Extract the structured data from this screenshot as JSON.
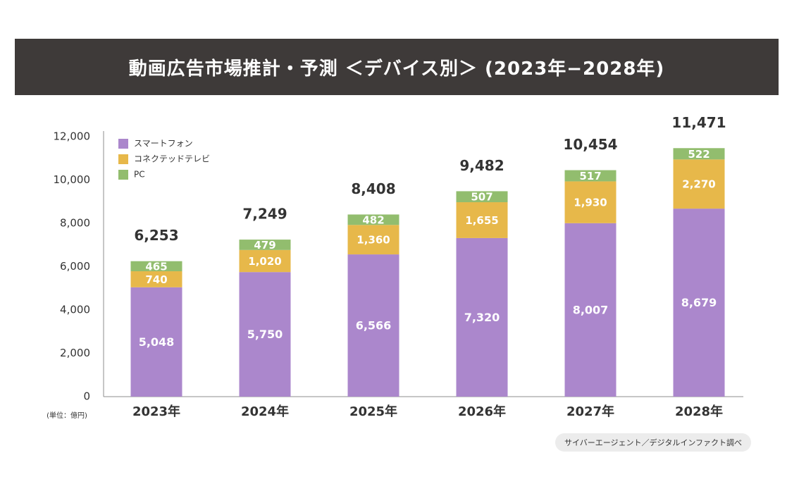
{
  "colors": {
    "smartphone": "#ab87cc",
    "ctv": "#e7b84a",
    "pc": "#92bd6e",
    "title_bg": "#3e3a39",
    "axis": "#8c8c8c",
    "text": "#333333"
  },
  "header": {
    "title": "動画広告市場推計・予測 ＜デバイス別＞ (2023年−2028年)"
  },
  "source": "サイバーエージェント／デジタルインファクト調べ",
  "chart_data": {
    "type": "bar",
    "stacked": true,
    "title": "動画広告市場推計・予測 ＜デバイス別＞ (2023年−2028年)",
    "unit_label": "(単位：億円)",
    "categories": [
      "2023年",
      "2024年",
      "2025年",
      "2026年",
      "2027年",
      "2028年"
    ],
    "series": [
      {
        "name": "スマートフォン",
        "color_key": "smartphone",
        "values": [
          5048,
          5750,
          6566,
          7320,
          8007,
          8679
        ],
        "labels": [
          "5,048",
          "5,750",
          "6,566",
          "7,320",
          "8,007",
          "8,679"
        ]
      },
      {
        "name": "コネクテッドテレビ",
        "color_key": "ctv",
        "values": [
          740,
          1020,
          1360,
          1655,
          1930,
          2270
        ],
        "labels": [
          "740",
          "1,020",
          "1,360",
          "1,655",
          "1,930",
          "2,270"
        ]
      },
      {
        "name": "PC",
        "color_key": "pc",
        "values": [
          465,
          479,
          482,
          507,
          517,
          522
        ],
        "labels": [
          "465",
          "479",
          "482",
          "507",
          "517",
          "522"
        ]
      }
    ],
    "totals": [
      6253,
      7249,
      8408,
      9482,
      10454,
      11471
    ],
    "total_labels": [
      "6,253",
      "7,249",
      "8,408",
      "9,482",
      "10,454",
      "11,471"
    ],
    "ylim": [
      0,
      12000
    ],
    "yticks": [
      0,
      2000,
      4000,
      6000,
      8000,
      10000,
      12000
    ],
    "ytick_labels": [
      "0",
      "2,000",
      "4,000",
      "6,000",
      "8,000",
      "10,000",
      "12,000"
    ],
    "grid": false,
    "legend_position": "top-left"
  }
}
